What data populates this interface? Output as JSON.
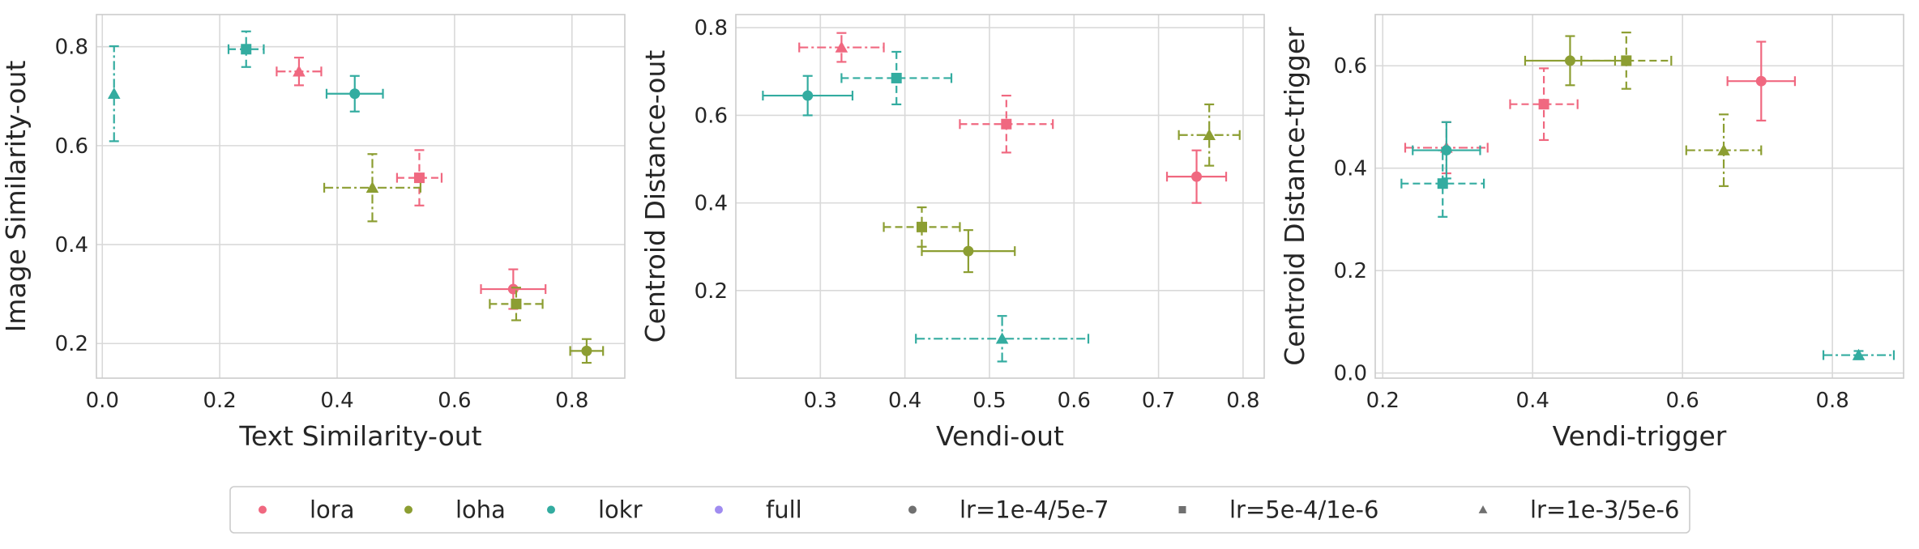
{
  "colors": {
    "lora": "#f06880",
    "loha": "#8c9e32",
    "lokr": "#33aca0",
    "full": "#a08cf0",
    "lr_marker": "#707070",
    "grid": "#d9d9d9",
    "frame": "#cccccc"
  },
  "legend": {
    "items": [
      {
        "label": "lora",
        "marker": "circle",
        "color_key": "lora"
      },
      {
        "label": "loha",
        "marker": "circle",
        "color_key": "loha"
      },
      {
        "label": "lokr",
        "marker": "circle",
        "color_key": "lokr"
      },
      {
        "label": "full",
        "marker": "circle",
        "color_key": "full"
      },
      {
        "label": "lr=1e-4/5e-7",
        "marker": "circle",
        "color_key": "lr_marker"
      },
      {
        "label": "lr=5e-4/1e-6",
        "marker": "square",
        "color_key": "lr_marker"
      },
      {
        "label": "lr=1e-3/5e-6",
        "marker": "triangle",
        "color_key": "lr_marker"
      }
    ],
    "placement": "bottom-center"
  },
  "chart_data": [
    {
      "type": "scatter",
      "xlabel": "Text Similarity-out",
      "ylabel": "Image Similarity-out",
      "xlim": [
        -0.01,
        0.89
      ],
      "ylim": [
        0.13,
        0.865
      ],
      "xticks": [
        0.0,
        0.2,
        0.4,
        0.6,
        0.8
      ],
      "xtick_labels": [
        "0.0",
        "0.2",
        "0.4",
        "0.6",
        "0.8"
      ],
      "yticks": [
        0.2,
        0.4,
        0.6,
        0.8
      ],
      "ytick_labels": [
        "0.2",
        "0.4",
        "0.6",
        "0.8"
      ],
      "grid": true,
      "points": [
        {
          "algo": "lora",
          "lr": "lr=1e-4/5e-7",
          "marker": "circle",
          "line": "solid",
          "x": 0.7,
          "y": 0.31,
          "xerr": 0.055,
          "yerr": 0.04
        },
        {
          "algo": "lora",
          "lr": "lr=5e-4/1e-6",
          "marker": "square",
          "line": "dashed",
          "x": 0.54,
          "y": 0.535,
          "xerr": 0.038,
          "yerr": 0.056
        },
        {
          "algo": "lora",
          "lr": "lr=1e-3/5e-6",
          "marker": "triangle",
          "line": "dashdot",
          "x": 0.335,
          "y": 0.75,
          "xerr": 0.038,
          "yerr": 0.028
        },
        {
          "algo": "loha",
          "lr": "lr=1e-4/5e-7",
          "marker": "circle",
          "line": "solid",
          "x": 0.825,
          "y": 0.185,
          "xerr": 0.028,
          "yerr": 0.024
        },
        {
          "algo": "loha",
          "lr": "lr=5e-4/1e-6",
          "marker": "square",
          "line": "dashed",
          "x": 0.705,
          "y": 0.28,
          "xerr": 0.045,
          "yerr": 0.033
        },
        {
          "algo": "loha",
          "lr": "lr=1e-3/5e-6",
          "marker": "triangle",
          "line": "dashdot",
          "x": 0.46,
          "y": 0.515,
          "xerr": 0.082,
          "yerr": 0.068
        },
        {
          "algo": "lokr",
          "lr": "lr=1e-4/5e-7",
          "marker": "circle",
          "line": "solid",
          "x": 0.43,
          "y": 0.705,
          "xerr": 0.048,
          "yerr": 0.036
        },
        {
          "algo": "lokr",
          "lr": "lr=5e-4/1e-6",
          "marker": "square",
          "line": "dashed",
          "x": 0.245,
          "y": 0.795,
          "xerr": 0.03,
          "yerr": 0.036
        },
        {
          "algo": "lokr",
          "lr": "lr=1e-3/5e-6",
          "marker": "triangle",
          "line": "dashdot",
          "x": 0.02,
          "y": 0.705,
          "xerr": 0.0,
          "yerr": 0.096
        }
      ]
    },
    {
      "type": "scatter",
      "xlabel": "Vendi-out",
      "ylabel": "Centroid Distance-out",
      "xlim": [
        0.2,
        0.825
      ],
      "ylim": [
        0.0,
        0.83
      ],
      "xticks": [
        0.3,
        0.4,
        0.5,
        0.6,
        0.7,
        0.8
      ],
      "xtick_labels": [
        "0.3",
        "0.4",
        "0.5",
        "0.6",
        "0.7",
        "0.8"
      ],
      "yticks": [
        0.2,
        0.4,
        0.6,
        0.8
      ],
      "ytick_labels": [
        "0.2",
        "0.4",
        "0.6",
        "0.8"
      ],
      "grid": true,
      "points": [
        {
          "algo": "lora",
          "lr": "lr=1e-4/5e-7",
          "marker": "circle",
          "line": "solid",
          "x": 0.745,
          "y": 0.46,
          "xerr": 0.035,
          "yerr": 0.06
        },
        {
          "algo": "lora",
          "lr": "lr=5e-4/1e-6",
          "marker": "square",
          "line": "dashed",
          "x": 0.52,
          "y": 0.58,
          "xerr": 0.055,
          "yerr": 0.065
        },
        {
          "algo": "lora",
          "lr": "lr=1e-3/5e-6",
          "marker": "triangle",
          "line": "dashdot",
          "x": 0.325,
          "y": 0.755,
          "xerr": 0.05,
          "yerr": 0.033
        },
        {
          "algo": "loha",
          "lr": "lr=1e-4/5e-7",
          "marker": "circle",
          "line": "solid",
          "x": 0.475,
          "y": 0.29,
          "xerr": 0.055,
          "yerr": 0.048
        },
        {
          "algo": "loha",
          "lr": "lr=5e-4/1e-6",
          "marker": "square",
          "line": "dashed",
          "x": 0.42,
          "y": 0.345,
          "xerr": 0.045,
          "yerr": 0.045
        },
        {
          "algo": "loha",
          "lr": "lr=1e-3/5e-6",
          "marker": "triangle",
          "line": "dashdot",
          "x": 0.76,
          "y": 0.555,
          "xerr": 0.036,
          "yerr": 0.07
        },
        {
          "algo": "lokr",
          "lr": "lr=1e-4/5e-7",
          "marker": "circle",
          "line": "solid",
          "x": 0.285,
          "y": 0.645,
          "xerr": 0.053,
          "yerr": 0.045
        },
        {
          "algo": "lokr",
          "lr": "lr=5e-4/1e-6",
          "marker": "square",
          "line": "dashed",
          "x": 0.39,
          "y": 0.685,
          "xerr": 0.065,
          "yerr": 0.06
        },
        {
          "algo": "lokr",
          "lr": "lr=1e-3/5e-6",
          "marker": "triangle",
          "line": "dashdot",
          "x": 0.515,
          "y": 0.09,
          "xerr": 0.102,
          "yerr": 0.052
        }
      ]
    },
    {
      "type": "scatter",
      "xlabel": "Vendi-trigger",
      "ylabel": "Centroid Distance-trigger",
      "xlim": [
        0.19,
        0.895
      ],
      "ylim": [
        -0.01,
        0.7
      ],
      "xticks": [
        0.2,
        0.4,
        0.6,
        0.8
      ],
      "xtick_labels": [
        "0.2",
        "0.4",
        "0.6",
        "0.8"
      ],
      "yticks": [
        0.0,
        0.2,
        0.4,
        0.6
      ],
      "ytick_labels": [
        "0.0",
        "0.2",
        "0.4",
        "0.6"
      ],
      "grid": true,
      "points": [
        {
          "algo": "lora",
          "lr": "lr=1e-4/5e-7",
          "marker": "circle",
          "line": "solid",
          "x": 0.705,
          "y": 0.57,
          "xerr": 0.045,
          "yerr": 0.077
        },
        {
          "algo": "lora",
          "lr": "lr=5e-4/1e-6",
          "marker": "square",
          "line": "dashed",
          "x": 0.415,
          "y": 0.525,
          "xerr": 0.045,
          "yerr": 0.07
        },
        {
          "algo": "lora",
          "lr": "lr=1e-3/5e-6",
          "marker": "triangle",
          "line": "dashdot",
          "x": 0.285,
          "y": 0.44,
          "xerr": 0.055,
          "yerr": 0.05
        },
        {
          "algo": "loha",
          "lr": "lr=1e-4/5e-7",
          "marker": "circle",
          "line": "solid",
          "x": 0.45,
          "y": 0.61,
          "xerr": 0.06,
          "yerr": 0.048
        },
        {
          "algo": "loha",
          "lr": "lr=5e-4/1e-6",
          "marker": "square",
          "line": "dashed",
          "x": 0.525,
          "y": 0.61,
          "xerr": 0.06,
          "yerr": 0.055
        },
        {
          "algo": "loha",
          "lr": "lr=1e-3/5e-6",
          "marker": "triangle",
          "line": "dashdot",
          "x": 0.655,
          "y": 0.435,
          "xerr": 0.05,
          "yerr": 0.07
        },
        {
          "algo": "lokr",
          "lr": "lr=1e-4/5e-7",
          "marker": "circle",
          "line": "solid",
          "x": 0.285,
          "y": 0.435,
          "xerr": 0.045,
          "yerr": 0.055
        },
        {
          "algo": "lokr",
          "lr": "lr=5e-4/1e-6",
          "marker": "square",
          "line": "dashed",
          "x": 0.28,
          "y": 0.37,
          "xerr": 0.055,
          "yerr": 0.065
        },
        {
          "algo": "lokr",
          "lr": "lr=1e-3/5e-6",
          "marker": "triangle",
          "line": "dashdot",
          "x": 0.835,
          "y": 0.035,
          "xerr": 0.047,
          "yerr": 0.008
        }
      ]
    }
  ]
}
